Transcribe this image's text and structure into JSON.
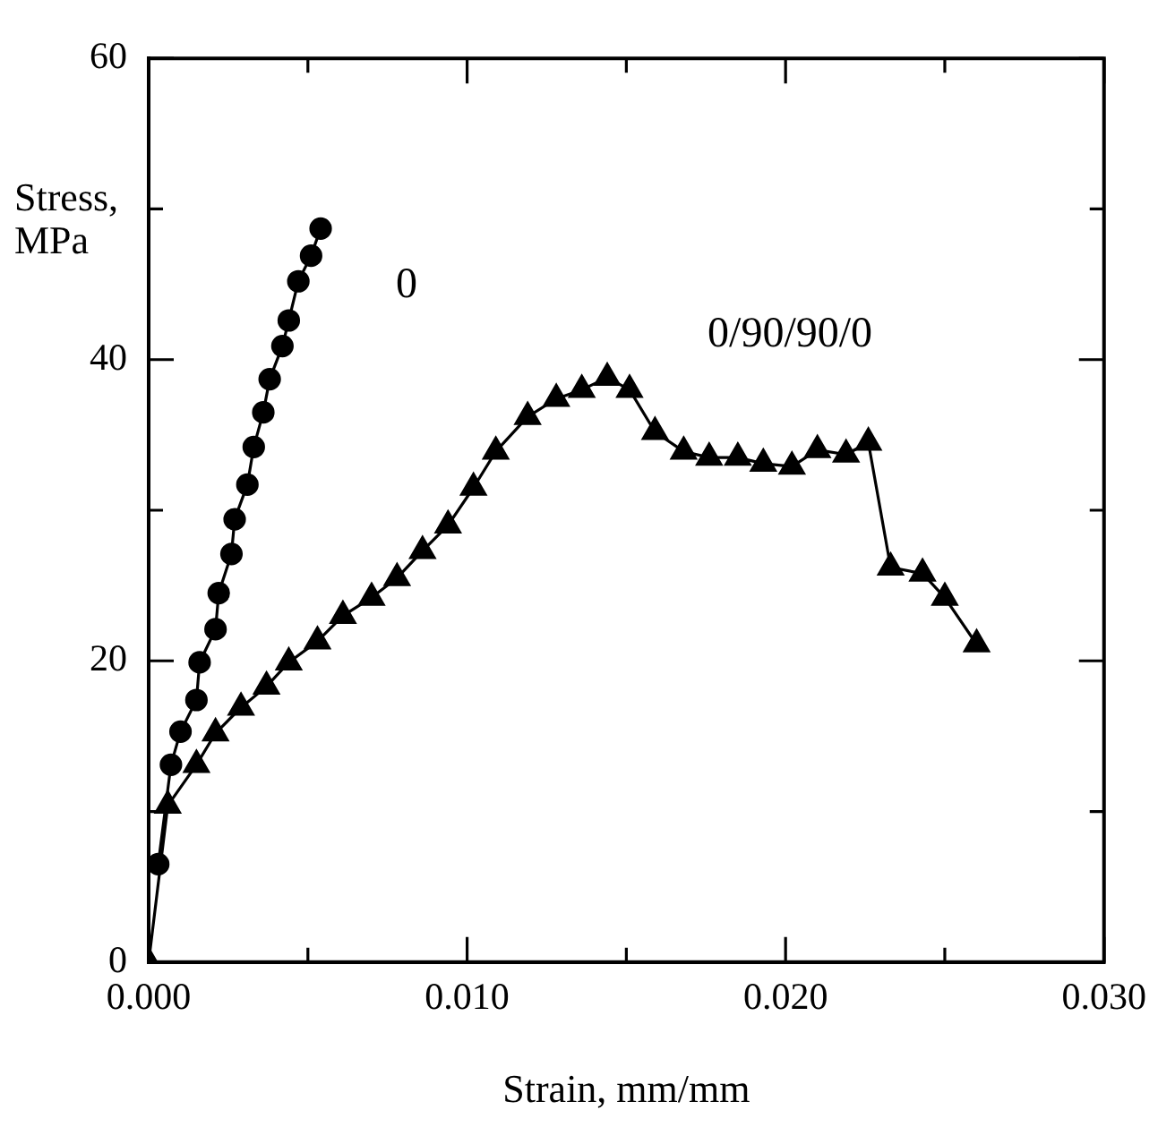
{
  "chart_data": {
    "type": "line",
    "xlabel": "Strain, mm/mm",
    "ylabel": "Stress, MPa",
    "xlim": [
      0,
      0.03
    ],
    "ylim": [
      0,
      60
    ],
    "xticks": [
      {
        "value": 0,
        "label": "0.000"
      },
      {
        "value": 0.005,
        "label": null
      },
      {
        "value": 0.01,
        "label": "0.010"
      },
      {
        "value": 0.015,
        "label": null
      },
      {
        "value": 0.02,
        "label": "0.020"
      },
      {
        "value": 0.025,
        "label": null
      },
      {
        "value": 0.03,
        "label": "0.030"
      }
    ],
    "yticks": [
      0,
      {
        "value": 10,
        "label": null
      },
      20,
      {
        "value": 30,
        "label": null
      },
      40,
      {
        "value": 50,
        "label": null
      },
      60
    ],
    "grid": false,
    "legend": false,
    "series": [
      {
        "name": "0",
        "color": "#000000",
        "marker": "circle",
        "x": [
          0.0003,
          0.0007,
          0.001,
          0.0015,
          0.0016,
          0.0021,
          0.0022,
          0.0026,
          0.0027,
          0.0031,
          0.0033,
          0.0036,
          0.0038,
          0.0042,
          0.0044,
          0.0047,
          0.0051,
          0.0054
        ],
        "values": [
          6.5,
          13.1,
          15.3,
          17.4,
          19.9,
          22.1,
          24.5,
          27.1,
          29.4,
          31.7,
          34.2,
          36.5,
          38.7,
          40.9,
          42.6,
          45.2,
          46.9,
          48.7
        ]
      },
      {
        "name": "0/90/90/0",
        "color": "#000000",
        "marker": "triangle",
        "x": [
          0,
          0.0006,
          0.0015,
          0.0021,
          0.0029,
          0.0037,
          0.0044,
          0.0053,
          0.0061,
          0.007,
          0.0078,
          0.0086,
          0.0094,
          0.0102,
          0.0109,
          0.0119,
          0.0128,
          0.0136,
          0.0144,
          0.0151,
          0.0159,
          0.0168,
          0.0176,
          0.0185,
          0.0193,
          0.0202,
          0.021,
          0.0219,
          0.0226,
          0.0233,
          0.0243,
          0.025,
          0.026
        ],
        "values": [
          0,
          10.4,
          13.1,
          15.2,
          16.9,
          18.3,
          19.9,
          21.3,
          23,
          24.2,
          25.5,
          27.3,
          29,
          31.5,
          33.9,
          36.2,
          37.4,
          38,
          38.8,
          38,
          35.2,
          33.9,
          33.5,
          33.5,
          33.1,
          32.9,
          34,
          33.7,
          34.5,
          26.2,
          25.8,
          24.2,
          21.1
        ]
      }
    ]
  }
}
